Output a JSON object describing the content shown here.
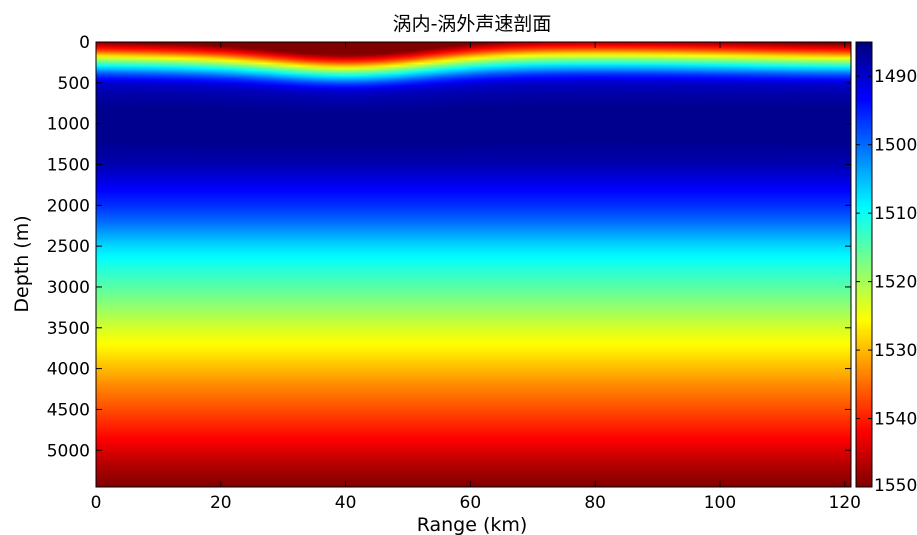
{
  "chart_data": {
    "type": "heatmap",
    "title": "涡内-涡外声速剖面",
    "xlabel": "Range (km)",
    "ylabel": "Depth (m)",
    "xlim": [
      0,
      121
    ],
    "ylim": [
      5450,
      0
    ],
    "x_ticks": [
      0,
      20,
      40,
      60,
      80,
      100,
      120
    ],
    "y_ticks": [
      0,
      500,
      1000,
      1500,
      2000,
      2500,
      3000,
      3500,
      4000,
      4500,
      5000
    ],
    "colorbar": {
      "range": [
        1550,
        1485
      ],
      "ticks": [
        1490,
        1500,
        1510,
        1520,
        1530,
        1540,
        1550
      ],
      "colormap": "jet",
      "placement": "right"
    },
    "profile_depth_m": [
      0,
      100,
      200,
      300,
      400,
      500,
      600,
      700,
      800,
      1000,
      1200,
      1500,
      1800,
      2000,
      2200,
      2500,
      2800,
      3000,
      3200,
      3500,
      3800,
      4000,
      4200,
      4500,
      4800,
      5000,
      5200,
      5450
    ],
    "profile_sound_speed": [
      1550,
      1538,
      1522,
      1508,
      1497,
      1490,
      1488,
      1487,
      1486,
      1486,
      1486,
      1488,
      1493,
      1496,
      1500,
      1507,
      1512,
      1515,
      1518,
      1523,
      1527,
      1530,
      1533,
      1537,
      1541,
      1544,
      1547,
      1550
    ],
    "eddy": {
      "center_range_km": 41,
      "width_km": 16,
      "thermocline_deepening_m": 160
    },
    "grid": false,
    "legend": "none"
  }
}
